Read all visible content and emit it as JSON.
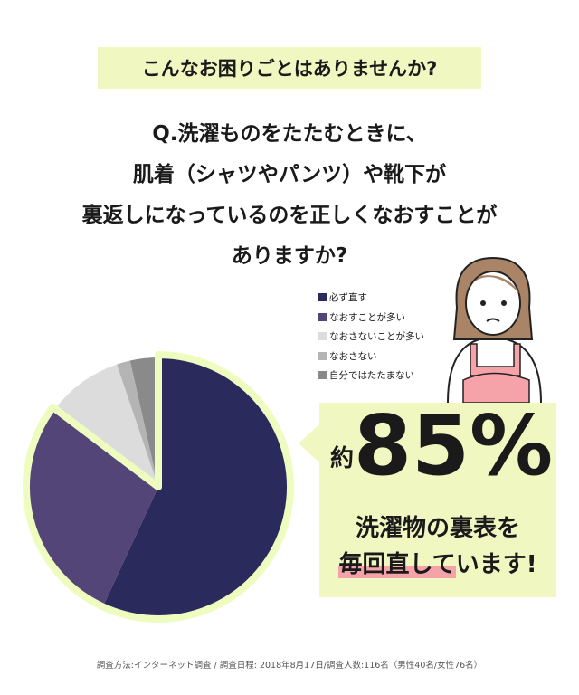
{
  "banner": "こんなお困りごとはありませんか?",
  "question": [
    "Q.洗濯ものをたたむときに、",
    "肌着（シャツやパンツ）や靴下が",
    "裏返しになっているのを正しくなおすことが",
    "ありますか?"
  ],
  "callout": {
    "prefix": "約",
    "value": "85%",
    "line1": "洗濯物の裏表を",
    "line2_highlight": "毎回直して",
    "line2_rest": "います!",
    "highlight_color": "#f5a3a8",
    "bg_color": "#f0f7c0"
  },
  "footer": "調査方法:インターネット調査 / 調査日程: 2018年8月17日/調査人数:116名（男性40名/女性76名）",
  "chart_data": {
    "type": "pie",
    "start": "top",
    "direction": "clockwise",
    "legend_position": "right",
    "categories": [
      "必ず直す",
      "なおすことが多い",
      "なおさないことが多い",
      "なおさない",
      "自分ではたたまない"
    ],
    "values": [
      56.9,
      28.4,
      9.5,
      1.7,
      3.5
    ],
    "colors": [
      "#2b2a5c",
      "#544579",
      "#dcdcdc",
      "#b4b4b4",
      "#8a8a8a"
    ],
    "highlighted": [
      "必ず直す",
      "なおすことが多い"
    ],
    "highlight_outline": "#eefcbf"
  }
}
